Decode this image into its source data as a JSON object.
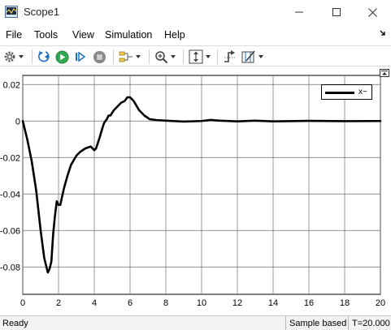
{
  "window": {
    "title": "Scope1",
    "icon": "simulink-scope-icon",
    "controls": [
      "minimize-icon",
      "maximize-icon",
      "close-icon"
    ]
  },
  "menu": {
    "items": [
      "File",
      "Tools",
      "View",
      "Simulation",
      "Help"
    ],
    "overflow_icon": "undock-arrow-icon"
  },
  "toolbar": {
    "buttons": [
      {
        "name": "settings",
        "icon": "gear-icon",
        "dropdown": true
      },
      {
        "name": "step-back",
        "icon": "step-back-icon",
        "dropdown": false
      },
      {
        "name": "run",
        "icon": "play-icon",
        "dropdown": false
      },
      {
        "name": "step-forward",
        "icon": "step-forward-icon",
        "dropdown": false
      },
      {
        "name": "stop",
        "icon": "stop-icon",
        "dropdown": false
      },
      {
        "name": "signal-selector",
        "icon": "signal-selector-icon",
        "dropdown": true
      },
      {
        "name": "zoom",
        "icon": "zoom-in-icon",
        "dropdown": true
      },
      {
        "name": "scale-axes",
        "icon": "scale-axes-icon",
        "dropdown": true
      },
      {
        "name": "triggers",
        "icon": "trigger-icon",
        "dropdown": false
      },
      {
        "name": "cursor-measurements",
        "icon": "cursor-measurements-icon",
        "dropdown": true
      }
    ]
  },
  "colors": {
    "play_green": "#2fa84f",
    "stop_gray": "#8a8a8a",
    "step_blue": "#1f6fc5",
    "trace": "#000000",
    "grid": "#6e6e6e"
  },
  "status": {
    "left": "Ready",
    "mode": "Sample based",
    "time": "T=20.000"
  },
  "chart_data": {
    "type": "line",
    "title": "",
    "xlabel": "",
    "ylabel": "",
    "xlim": [
      0,
      20
    ],
    "ylim": [
      -0.095,
      0.025
    ],
    "x_ticks": [
      0,
      2,
      4,
      6,
      8,
      10,
      12,
      14,
      16,
      18,
      20
    ],
    "x_tick_labels": [
      "0",
      "2",
      "4",
      "6",
      "8",
      "10",
      "12",
      "14",
      "16",
      "18",
      "20"
    ],
    "y_ticks": [
      0.02,
      0,
      -0.02,
      -0.04,
      -0.06,
      -0.08
    ],
    "y_tick_labels": [
      "0.02",
      "0",
      "-0.02",
      "-0.04",
      "-0.06",
      "-0.08"
    ],
    "grid": true,
    "legend_position": "top-right",
    "series": [
      {
        "name": "x~",
        "color": "#000000",
        "x": [
          0,
          0.25,
          0.5,
          0.75,
          1.0,
          1.2,
          1.4,
          1.5,
          1.6,
          1.7,
          1.8,
          1.9,
          2.0,
          2.1,
          2.3,
          2.5,
          2.7,
          3.0,
          3.2,
          3.5,
          3.8,
          4.0,
          4.1,
          4.3,
          4.45,
          4.55,
          4.7,
          4.8,
          4.9,
          5.1,
          5.3,
          5.5,
          5.7,
          5.85,
          6.0,
          6.2,
          6.5,
          6.8,
          7.1,
          7.5,
          8.0,
          9.0,
          10.0,
          10.5,
          11.0,
          12.0,
          13.0,
          14.0,
          16.0,
          18.0,
          20.0
        ],
        "y": [
          0,
          -0.01,
          -0.022,
          -0.038,
          -0.06,
          -0.075,
          -0.083,
          -0.081,
          -0.077,
          -0.062,
          -0.052,
          -0.044,
          -0.046,
          -0.046,
          -0.037,
          -0.03,
          -0.024,
          -0.019,
          -0.017,
          -0.015,
          -0.014,
          -0.016,
          -0.015,
          -0.009,
          -0.004,
          -0.001,
          0.001,
          0.003,
          0.003,
          0.006,
          0.008,
          0.01,
          0.011,
          0.013,
          0.013,
          0.011,
          0.006,
          0.003,
          0.001,
          0.0005,
          0.0002,
          -0.0003,
          0.0,
          0.0006,
          0.0002,
          -0.0002,
          0.0002,
          -0.0002,
          0.0001,
          -0.0001,
          0.0
        ]
      }
    ]
  }
}
